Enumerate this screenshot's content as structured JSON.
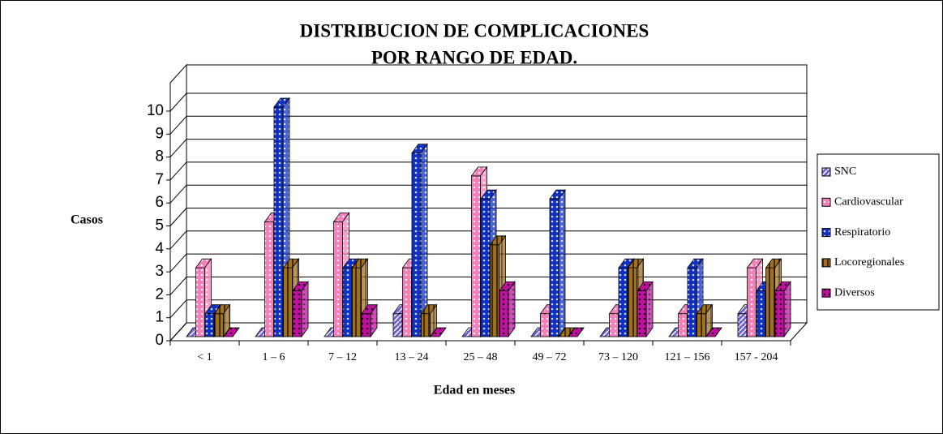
{
  "chart_data": {
    "type": "bar3d",
    "title": [
      "DISTRIBUCION DE COMPLICACIONES",
      "POR RANGO DE EDAD."
    ],
    "ylabel": "Casos",
    "xlabel": "Edad en meses",
    "categories": [
      "< 1",
      "1 – 6",
      "7 – 12",
      "13 – 24",
      "25 – 48",
      "49 – 72",
      "73 – 120",
      "121 – 156",
      "157 - 204"
    ],
    "series": [
      {
        "name": "SNC",
        "color": "#7060d0",
        "values": [
          0,
          0,
          0,
          1,
          0,
          0,
          0,
          0,
          1
        ]
      },
      {
        "name": "Cardiovascular",
        "color": "#f080b8",
        "values": [
          3,
          5,
          5,
          3,
          7,
          1,
          1,
          1,
          3
        ]
      },
      {
        "name": "Respiratorio",
        "color": "#1030c0",
        "values": [
          1,
          10,
          3,
          8,
          6,
          6,
          3,
          3,
          2
        ]
      },
      {
        "name": "Locoregionales",
        "color": "#a07020",
        "values": [
          1,
          3,
          3,
          1,
          4,
          0,
          3,
          1,
          3
        ]
      },
      {
        "name": "Diversos",
        "color": "#c010a0",
        "values": [
          0,
          2,
          1,
          0,
          2,
          0,
          2,
          0,
          2
        ]
      }
    ],
    "ylim": [
      0,
      10
    ],
    "yticks": [
      0,
      1,
      2,
      3,
      4,
      5,
      6,
      7,
      8,
      9,
      10
    ],
    "grid": true,
    "legend": "right"
  }
}
